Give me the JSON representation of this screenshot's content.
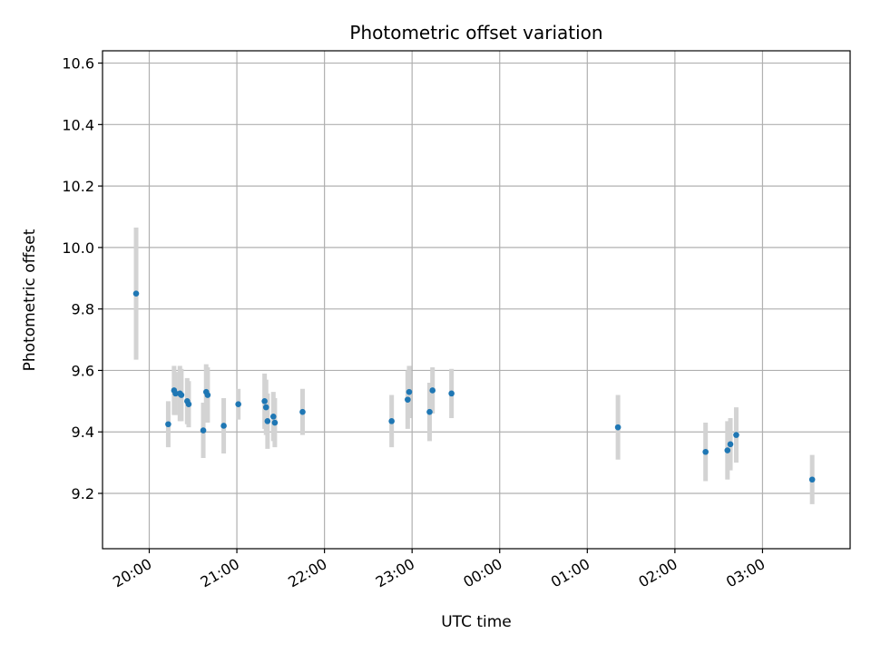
{
  "chart_data": {
    "type": "scatter",
    "title": "Photometric offset variation",
    "xlabel": "UTC time",
    "ylabel": "Photometric offset",
    "x_tick_labels": [
      "20:00",
      "21:00",
      "22:00",
      "23:00",
      "00:00",
      "01:00",
      "02:00",
      "03:00"
    ],
    "y_tick_labels": [
      "9.2",
      "9.4",
      "9.6",
      "9.8",
      "10.0",
      "10.2",
      "10.4",
      "10.6"
    ],
    "xlim": [
      "19:28",
      "04:00"
    ],
    "ylim": [
      9.02,
      10.64
    ],
    "grid": true,
    "colors": {
      "point": "#1f77b4",
      "errorbar": "#d3d3d3",
      "grid": "#b0b0b0"
    },
    "points": [
      {
        "t": "19:51",
        "y": 9.85,
        "err": 0.215
      },
      {
        "t": "20:13",
        "y": 9.425,
        "err": 0.075
      },
      {
        "t": "20:17",
        "y": 9.535,
        "err": 0.08
      },
      {
        "t": "20:18",
        "y": 9.525,
        "err": 0.07
      },
      {
        "t": "20:21",
        "y": 9.525,
        "err": 0.09
      },
      {
        "t": "20:22",
        "y": 9.52,
        "err": 0.085
      },
      {
        "t": "20:26",
        "y": 9.5,
        "err": 0.075
      },
      {
        "t": "20:27",
        "y": 9.49,
        "err": 0.075
      },
      {
        "t": "20:37",
        "y": 9.405,
        "err": 0.09
      },
      {
        "t": "20:39",
        "y": 9.53,
        "err": 0.09
      },
      {
        "t": "20:40",
        "y": 9.52,
        "err": 0.09
      },
      {
        "t": "20:51",
        "y": 9.42,
        "err": 0.09
      },
      {
        "t": "21:01",
        "y": 9.49,
        "err": 0.05
      },
      {
        "t": "21:19",
        "y": 9.5,
        "err": 0.09
      },
      {
        "t": "21:20",
        "y": 9.48,
        "err": 0.09
      },
      {
        "t": "21:21",
        "y": 9.435,
        "err": 0.09
      },
      {
        "t": "21:25",
        "y": 9.45,
        "err": 0.08
      },
      {
        "t": "21:26",
        "y": 9.43,
        "err": 0.08
      },
      {
        "t": "21:45",
        "y": 9.465,
        "err": 0.075
      },
      {
        "t": "22:46",
        "y": 9.435,
        "err": 0.085
      },
      {
        "t": "22:57",
        "y": 9.505,
        "err": 0.095
      },
      {
        "t": "22:58",
        "y": 9.53,
        "err": 0.085
      },
      {
        "t": "23:12",
        "y": 9.465,
        "err": 0.095
      },
      {
        "t": "23:14",
        "y": 9.535,
        "err": 0.075
      },
      {
        "t": "23:27",
        "y": 9.525,
        "err": 0.08
      },
      {
        "t": "01:21",
        "y": 9.415,
        "err": 0.105
      },
      {
        "t": "02:21",
        "y": 9.335,
        "err": 0.095
      },
      {
        "t": "02:36",
        "y": 9.34,
        "err": 0.095
      },
      {
        "t": "02:38",
        "y": 9.36,
        "err": 0.085
      },
      {
        "t": "02:42",
        "y": 9.39,
        "err": 0.09
      },
      {
        "t": "03:34",
        "y": 9.245,
        "err": 0.08
      }
    ]
  }
}
